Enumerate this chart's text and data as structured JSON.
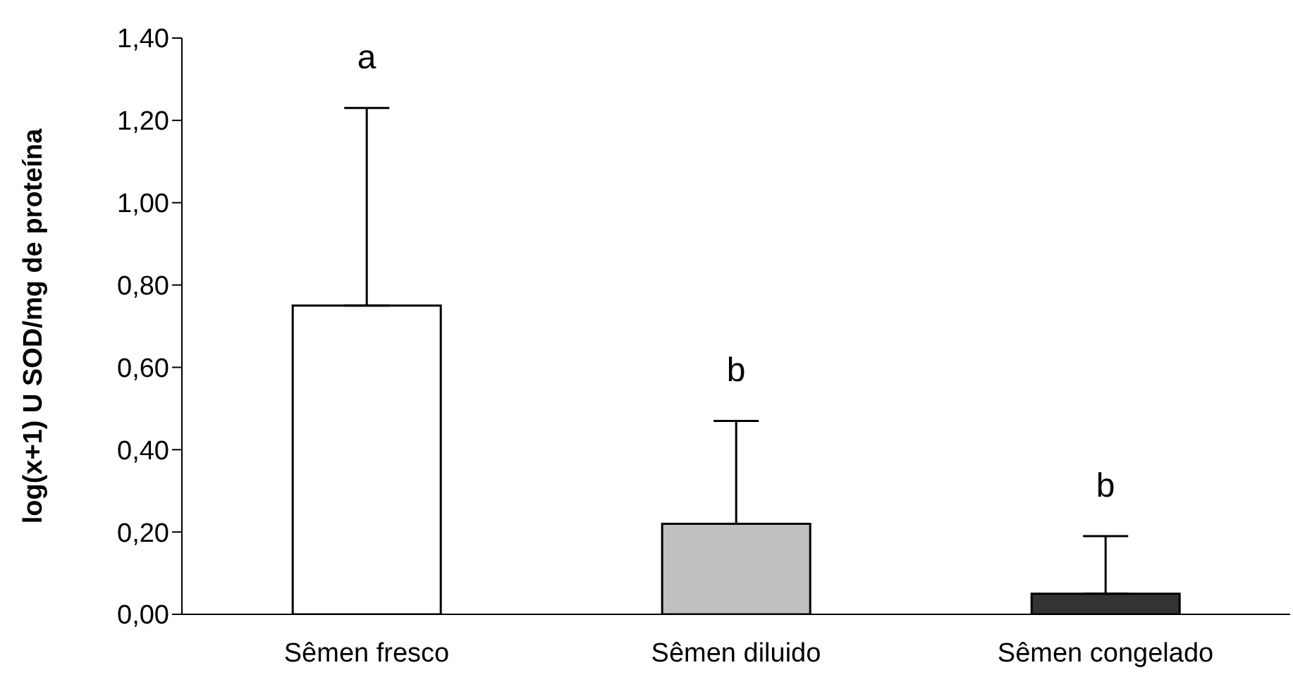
{
  "chart_data": {
    "type": "bar",
    "ylabel": "log(x+1) U SOD/mg de proteína",
    "categories": [
      "Sêmen fresco",
      "Sêmen diluido",
      "Sêmen congelado"
    ],
    "values": [
      0.75,
      0.22,
      0.05
    ],
    "colors": [
      "#ffffff",
      "#c0c0c0",
      "#333333"
    ],
    "errors": [
      [
        0.75,
        1.23
      ],
      [
        0.22,
        0.47
      ],
      [
        0.05,
        0.19
      ]
    ],
    "ylim": [
      0,
      1.4
    ],
    "yticks": [
      {
        "value": 0,
        "label": "0,00"
      },
      {
        "value": 0.2,
        "label": "0,20"
      },
      {
        "value": 0.4,
        "label": "0,40"
      },
      {
        "value": 0.6,
        "label": "0,60"
      },
      {
        "value": 0.8,
        "label": "0,80"
      },
      {
        "value": 1,
        "label": "1,00"
      },
      {
        "value": 1.2,
        "label": "1,20"
      },
      {
        "value": 1.4,
        "label": "1,40"
      }
    ],
    "annotations": [
      "a",
      "b",
      "b"
    ],
    "grid": false,
    "legend": false
  }
}
